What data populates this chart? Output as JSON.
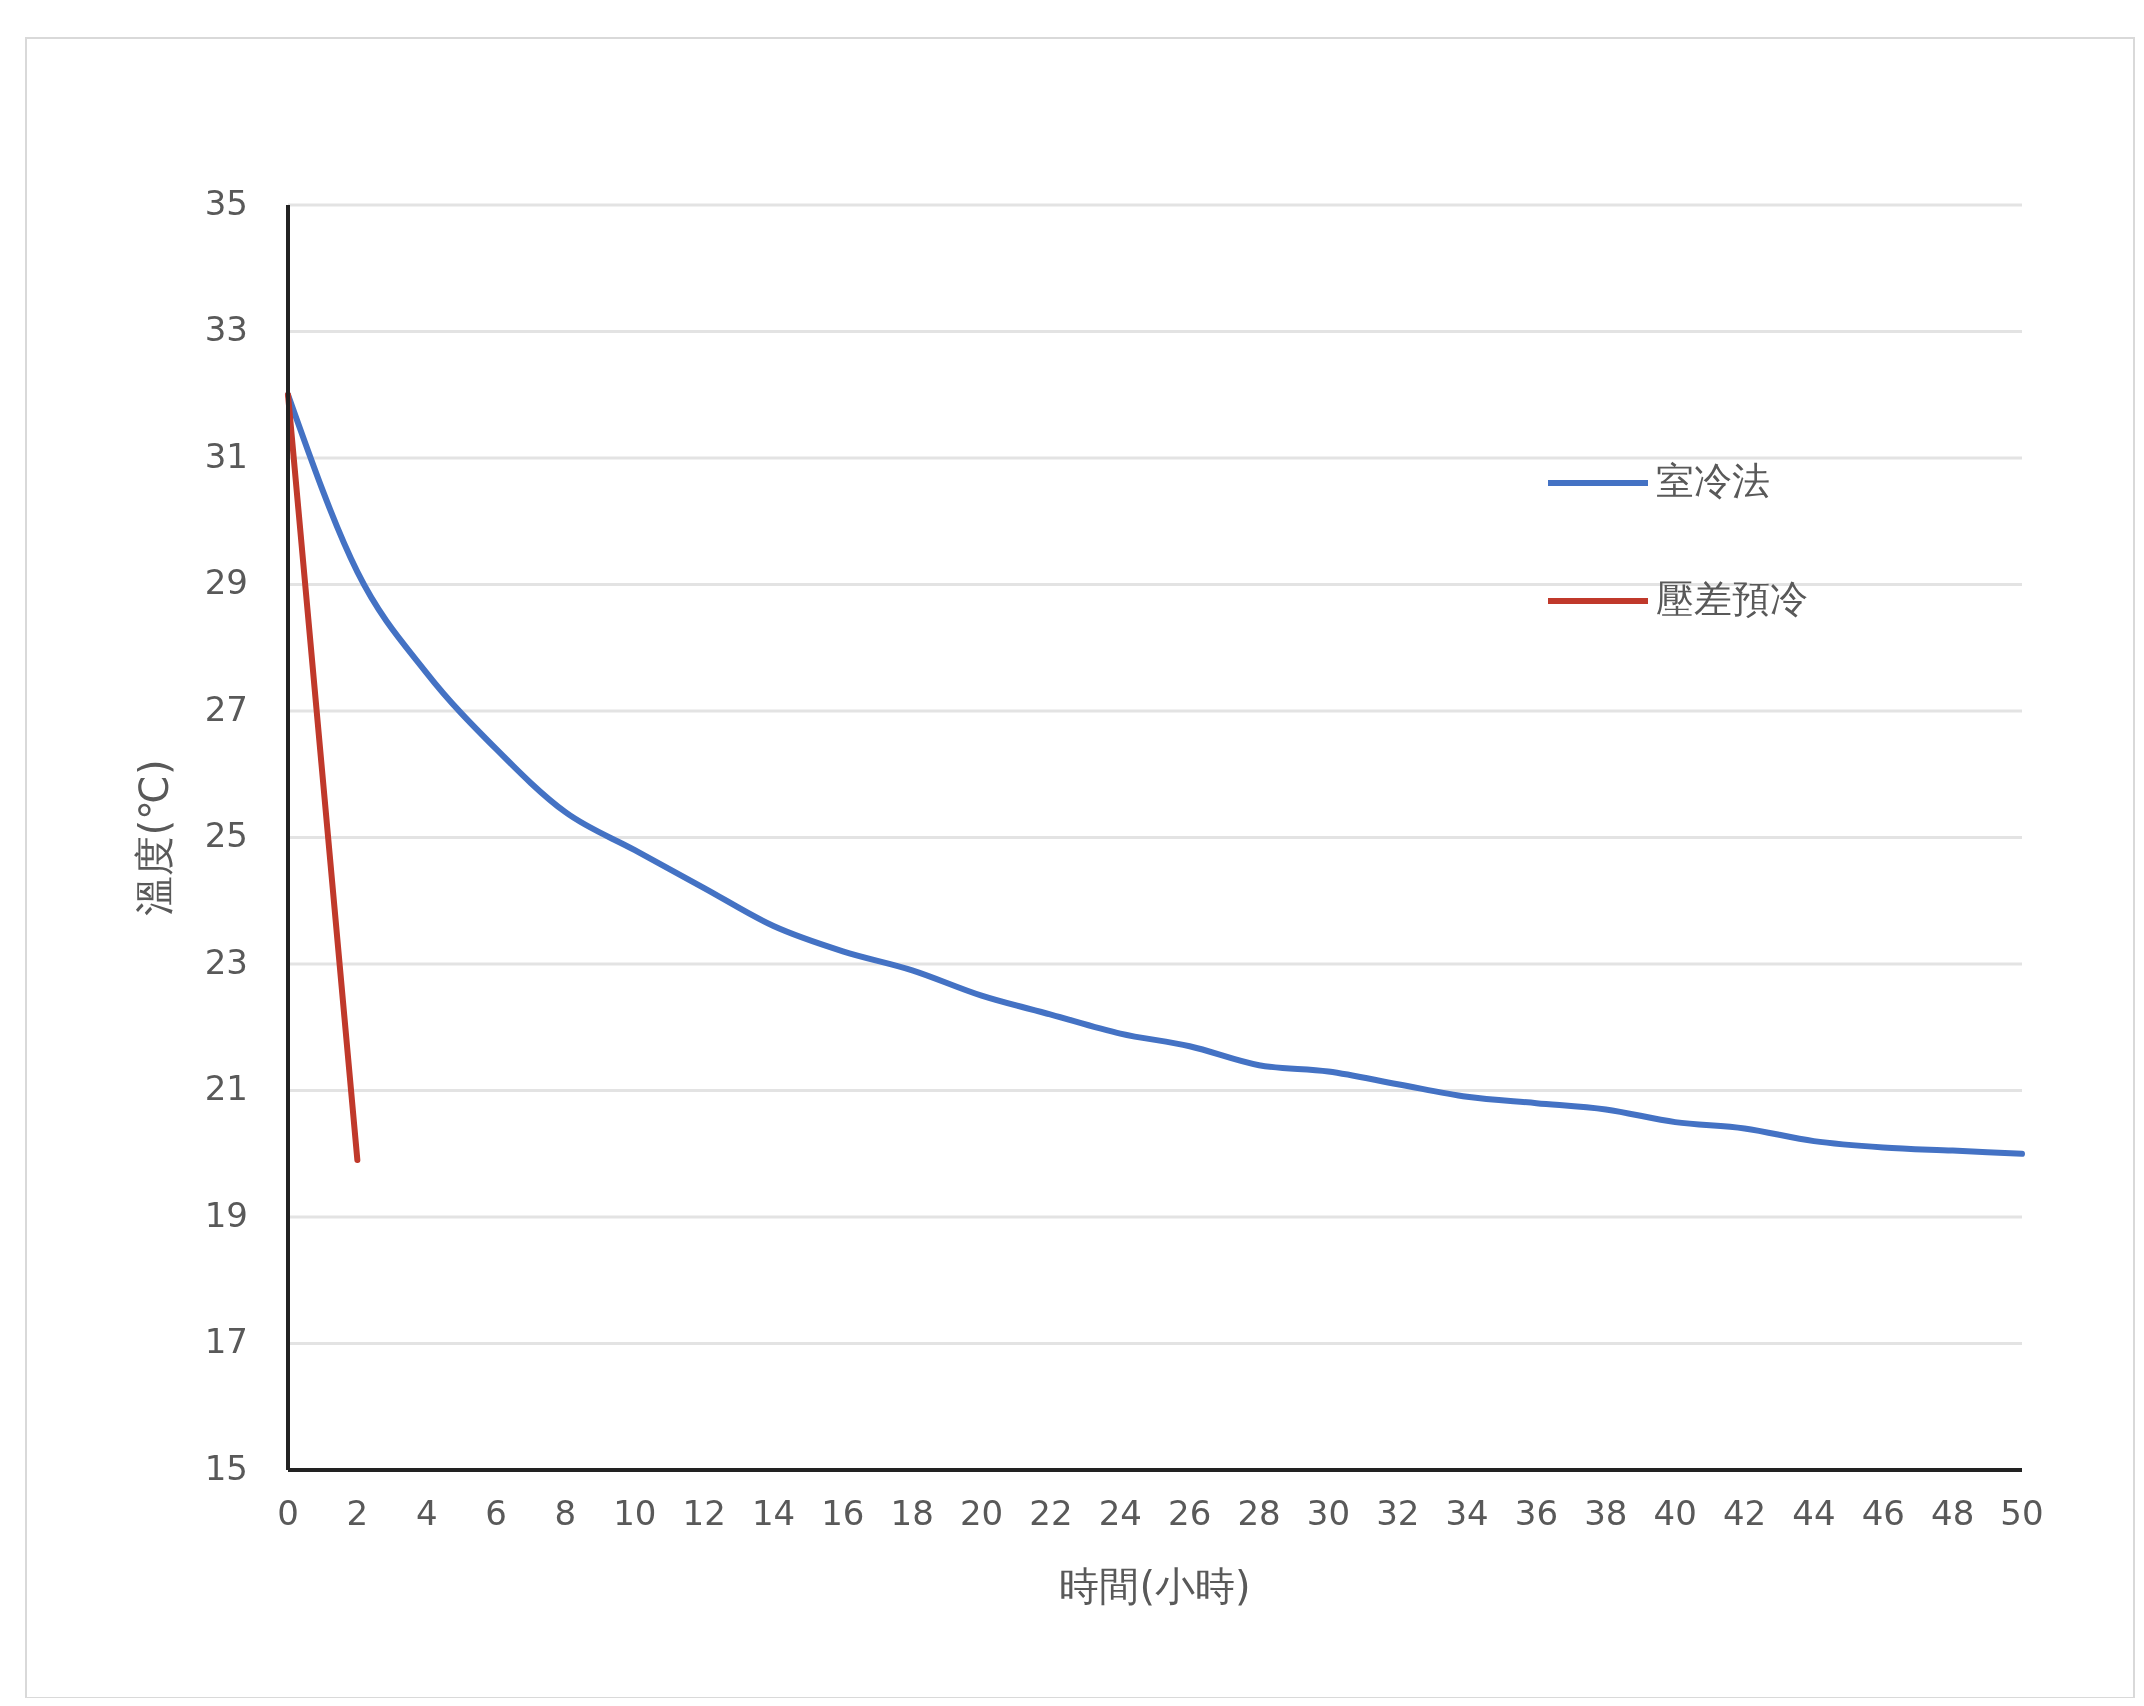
{
  "chart_data": {
    "type": "line",
    "xlabel": "時間(小時)",
    "ylabel": "溫度(℃)",
    "xlim": [
      0,
      50
    ],
    "xticks": [
      0,
      2,
      4,
      6,
      8,
      10,
      12,
      14,
      16,
      18,
      20,
      22,
      24,
      26,
      28,
      30,
      32,
      34,
      36,
      38,
      40,
      42,
      44,
      46,
      48,
      50
    ],
    "ylim": [
      15,
      35
    ],
    "yticks": [
      15,
      17,
      19,
      21,
      23,
      25,
      27,
      29,
      31,
      33,
      35
    ],
    "grid": "y",
    "legend": "top right",
    "line_style": "solid",
    "marker": "none",
    "series": [
      {
        "name": "室冷法",
        "color": "#4472c4",
        "x": [
          0,
          2,
          4,
          6,
          8,
          10,
          12,
          14,
          16,
          18,
          20,
          22,
          24,
          26,
          28,
          30,
          32,
          34,
          36,
          38,
          40,
          42,
          44,
          46,
          48,
          50
        ],
        "values": [
          32.0,
          29.2,
          27.6,
          26.4,
          25.4,
          24.8,
          24.2,
          23.6,
          23.2,
          22.9,
          22.5,
          22.2,
          21.9,
          21.7,
          21.4,
          21.3,
          21.1,
          20.9,
          20.8,
          20.7,
          20.5,
          20.4,
          20.2,
          20.1,
          20.05,
          20.0
        ]
      },
      {
        "name": "壓差預冷",
        "color": "#c0392b",
        "x": [
          0,
          2
        ],
        "values": [
          32.0,
          19.9
        ]
      }
    ]
  }
}
